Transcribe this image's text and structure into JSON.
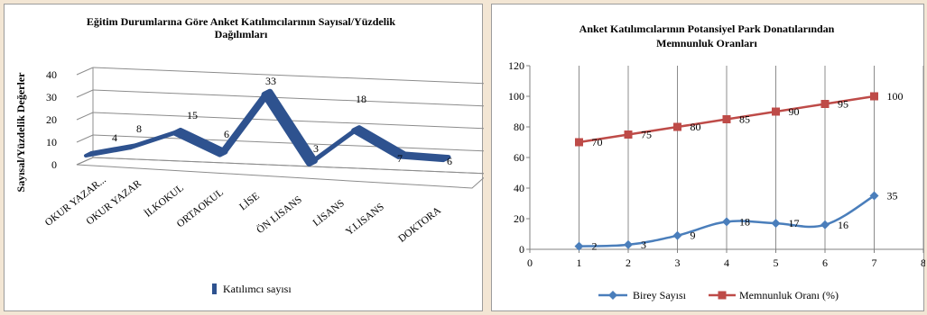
{
  "chart_data": [
    {
      "type": "line",
      "style": "3d-ribbon",
      "title": [
        "Eğitim Durumlarına  Göre Anket Katılımcılarının  Sayısal/Yüzdelik",
        "Dağılımları"
      ],
      "ylabel": "Sayısal/Yüzdelik Değerler",
      "xlabel": "",
      "categories": [
        "OKUR YAZAR...",
        "OKUR YAZAR",
        "İLKOKUL",
        "ORTAOKUL",
        "LİSE",
        "ÖN LİSANS",
        "LİSANS",
        "Y.LİSANS",
        "DOKTORA"
      ],
      "series": [
        {
          "name": "Katılımcı sayısı",
          "values": [
            4,
            8,
            15,
            6,
            33,
            3,
            18,
            7,
            6
          ],
          "color": "#2e528f"
        }
      ],
      "data_labels": [
        "4",
        "8",
        "15",
        "6",
        "33",
        "3",
        "18",
        "7",
        "6"
      ],
      "ylim": [
        0,
        40
      ],
      "yticks": [
        0,
        10,
        20,
        30,
        40
      ],
      "legend_position": "bottom"
    },
    {
      "type": "line",
      "style": "xy-scatter-lines",
      "title": [
        "Anket Katılımcılarının  Potansiyel Park Donatılarından",
        "Memnunluk  Oranları"
      ],
      "xlabel": "",
      "ylabel": "",
      "x": [
        1,
        2,
        3,
        4,
        5,
        6,
        7
      ],
      "series": [
        {
          "name": "Birey Sayısı",
          "values": [
            2,
            3,
            9,
            18,
            17,
            16,
            35
          ],
          "color": "#4a7ebb",
          "marker": "diamond"
        },
        {
          "name": "Memnunluk Oranı (%)",
          "values": [
            70,
            75,
            80,
            85,
            90,
            95,
            100
          ],
          "color": "#be4b48",
          "marker": "square"
        }
      ],
      "xlim": [
        0,
        8
      ],
      "ylim": [
        0,
        120
      ],
      "xticks": [
        0,
        1,
        2,
        3,
        4,
        5,
        6,
        7,
        8
      ],
      "yticks": [
        0,
        20,
        40,
        60,
        80,
        100,
        120
      ],
      "grid": "vertical",
      "legend_position": "bottom"
    }
  ]
}
